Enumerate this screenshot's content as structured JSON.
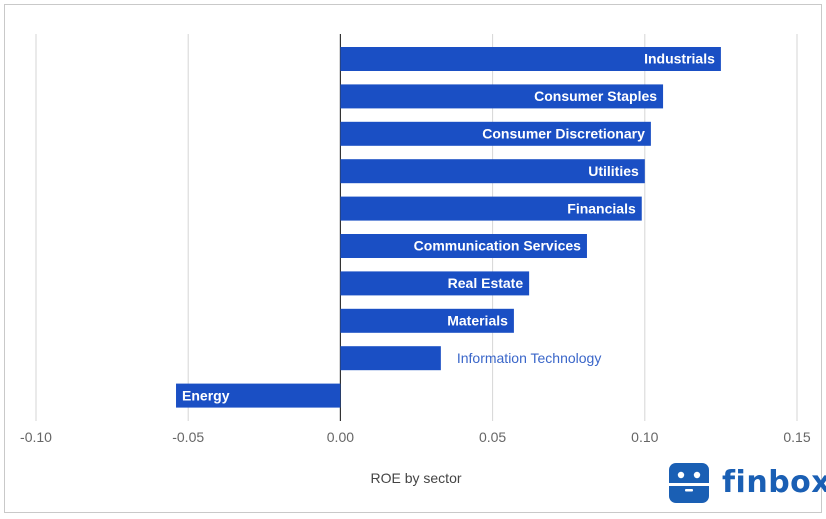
{
  "chart_data": {
    "type": "bar",
    "orientation": "horizontal",
    "title": "",
    "xlabel": "ROE by sector",
    "ylabel": "",
    "xlim": [
      -0.1,
      0.15
    ],
    "xticks": [
      "-0.10",
      "-0.05",
      "0.00",
      "0.05",
      "0.10",
      "0.15"
    ],
    "tick_values": [
      -0.1,
      -0.05,
      0.0,
      0.05,
      0.1,
      0.15
    ],
    "grid": true,
    "categories": [
      "Industrials",
      "Consumer Staples",
      "Consumer Discretionary",
      "Utilities",
      "Financials",
      "Communication Services",
      "Real Estate",
      "Materials",
      "Information Technology",
      "Energy"
    ],
    "values": [
      0.125,
      0.106,
      0.102,
      0.1,
      0.099,
      0.081,
      0.062,
      0.057,
      0.033,
      -0.054
    ],
    "bar_color": "#1a4fc4",
    "label_inside_color": "#ffffff",
    "label_outside_color": "#3a66c9"
  },
  "brand": {
    "name": "finbox",
    "color": "#1a5fb4"
  }
}
